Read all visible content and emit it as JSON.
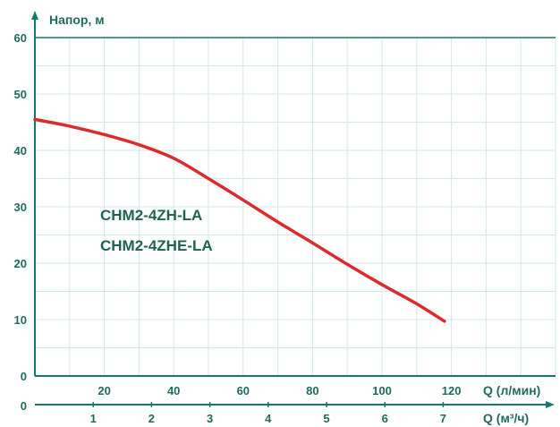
{
  "chart_data": {
    "type": "line",
    "ylabel": "Напор, м",
    "xlabel_lpm": "Q (л/мин)",
    "xlabel_m3h": "Q (м³/ч)",
    "ylim": [
      0,
      60
    ],
    "xlim_lpm": [
      0,
      150
    ],
    "xlim_m3h": [
      0,
      9
    ],
    "y_ticks": [
      "0",
      "10",
      "20",
      "30",
      "40",
      "50",
      "60"
    ],
    "x_ticks_lpm": [
      "20",
      "40",
      "60",
      "80",
      "100",
      "120"
    ],
    "x_ticks_m3h_zero": "0",
    "x_ticks_m3h": [
      "1",
      "2",
      "3",
      "4",
      "5",
      "6",
      "7"
    ],
    "grid": true,
    "labels": [
      "CHM2-4ZH-LA",
      "CHM2-4ZHE-LA"
    ],
    "series": [
      {
        "color": "#dd2a2f",
        "x": [
          0,
          10,
          20,
          30,
          40,
          50,
          60,
          70,
          80,
          90,
          100,
          110,
          118
        ],
        "y": [
          45.5,
          44.3,
          42.8,
          41.0,
          38.6,
          35.0,
          31.2,
          27.3,
          23.6,
          19.8,
          16.2,
          12.8,
          9.7
        ]
      }
    ],
    "colors": {
      "axis": "#127a6c",
      "grid": "#d2e9e7",
      "curve": "#dd2a2f",
      "text": "#1f6b5e",
      "model": "#1e6352"
    }
  }
}
